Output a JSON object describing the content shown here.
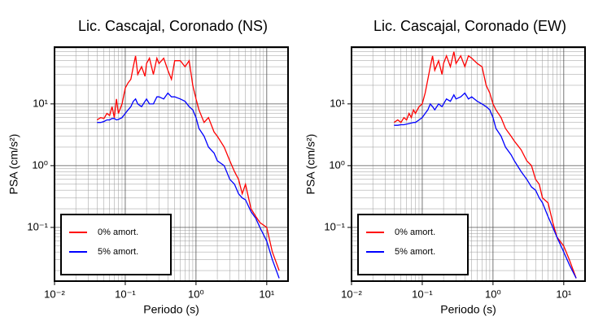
{
  "chart_data": [
    {
      "type": "line",
      "title": "Lic. Cascajal, Coronado (NS)",
      "x_label": "Periodo (s)",
      "y_label": "PSA (cm/s²)",
      "x_log": true,
      "y_log": true,
      "grid": true,
      "minor_grid": true,
      "legend": "lower left",
      "xlim": [
        0.01,
        20
      ],
      "ylim": [
        0.0135,
        83
      ],
      "xticks": [
        {
          "value": 0.01,
          "label": "10⁻²"
        },
        {
          "value": 0.1,
          "label": "10⁻¹"
        },
        {
          "value": 1,
          "label": "10⁰"
        },
        {
          "value": 10,
          "label": "10¹"
        }
      ],
      "yticks": [
        {
          "value": 0.1,
          "label": "10⁻¹"
        },
        {
          "value": 1,
          "label": "10⁰"
        },
        {
          "value": 10,
          "label": "10¹"
        }
      ],
      "x": [
        0.04,
        0.045,
        0.05,
        0.055,
        0.06,
        0.065,
        0.07,
        0.075,
        0.08,
        0.09,
        0.1,
        0.11,
        0.12,
        0.13,
        0.14,
        0.15,
        0.17,
        0.19,
        0.2,
        0.22,
        0.25,
        0.28,
        0.3,
        0.35,
        0.4,
        0.45,
        0.5,
        0.6,
        0.7,
        0.8,
        0.9,
        1.0,
        1.1,
        1.3,
        1.5,
        1.8,
        2.0,
        2.5,
        3.0,
        3.5,
        4.0,
        4.5,
        5.0,
        6.0,
        7.0,
        8.0,
        10,
        12,
        15
      ],
      "series": [
        {
          "name": "0% amort.",
          "color": "#ff0000",
          "values": [
            5.5,
            6,
            5.8,
            7,
            6.5,
            9,
            6,
            12,
            7,
            10,
            18,
            22,
            25,
            40,
            60,
            30,
            40,
            28,
            45,
            55,
            30,
            55,
            45,
            55,
            35,
            25,
            50,
            50,
            40,
            50,
            20,
            12,
            8,
            5,
            6,
            3.5,
            3,
            2,
            1.2,
            0.8,
            0.6,
            0.35,
            0.5,
            0.2,
            0.15,
            0.12,
            0.1,
            0.04,
            0.02
          ]
        },
        {
          "name": "5% amort.",
          "color": "#0000ff",
          "values": [
            5,
            5,
            5.2,
            5.5,
            5.5,
            5.8,
            5.8,
            5.5,
            5.6,
            6,
            7,
            8,
            9,
            11,
            12,
            10,
            9,
            11,
            12,
            10,
            10,
            13,
            13,
            12,
            15,
            13,
            13,
            12,
            11,
            9,
            8,
            6,
            4,
            3,
            2,
            1.6,
            1.2,
            1.0,
            0.6,
            0.5,
            0.35,
            0.3,
            0.28,
            0.18,
            0.14,
            0.1,
            0.06,
            0.03,
            0.015
          ]
        }
      ]
    },
    {
      "type": "line",
      "title": "Lic. Cascajal, Coronado (EW)",
      "x_label": "Periodo (s)",
      "y_label": "PSA (cm/s²)",
      "x_log": true,
      "y_log": true,
      "grid": true,
      "minor_grid": true,
      "legend": "lower left",
      "xlim": [
        0.01,
        20
      ],
      "ylim": [
        0.0135,
        83
      ],
      "xticks": [
        {
          "value": 0.01,
          "label": "10⁻²"
        },
        {
          "value": 0.1,
          "label": "10⁻¹"
        },
        {
          "value": 1,
          "label": "10⁰"
        },
        {
          "value": 10,
          "label": "10¹"
        }
      ],
      "yticks": [
        {
          "value": 0.1,
          "label": "10⁻¹"
        },
        {
          "value": 1,
          "label": "10⁰"
        },
        {
          "value": 10,
          "label": "10¹"
        }
      ],
      "x": [
        0.04,
        0.045,
        0.05,
        0.055,
        0.06,
        0.065,
        0.07,
        0.075,
        0.08,
        0.09,
        0.1,
        0.11,
        0.12,
        0.13,
        0.14,
        0.15,
        0.17,
        0.19,
        0.2,
        0.22,
        0.25,
        0.28,
        0.3,
        0.35,
        0.4,
        0.45,
        0.5,
        0.6,
        0.7,
        0.8,
        0.9,
        1.0,
        1.1,
        1.3,
        1.5,
        1.8,
        2.0,
        2.5,
        3.0,
        3.5,
        4.0,
        4.5,
        5.0,
        6.0,
        7.0,
        8.0,
        10,
        12,
        15
      ],
      "series": [
        {
          "name": "0% amort.",
          "color": "#ff0000",
          "values": [
            5,
            5.5,
            5,
            6,
            5.5,
            7,
            6,
            8,
            7,
            9,
            10,
            15,
            25,
            40,
            60,
            35,
            50,
            30,
            45,
            60,
            40,
            70,
            45,
            60,
            40,
            60,
            55,
            45,
            40,
            20,
            15,
            10,
            8,
            6,
            4,
            3,
            2.5,
            1.8,
            1.2,
            1.0,
            0.6,
            0.5,
            0.3,
            0.25,
            0.12,
            0.07,
            0.05,
            0.03,
            0.015
          ]
        },
        {
          "name": "5% amort.",
          "color": "#0000ff",
          "values": [
            4.5,
            4.5,
            4.6,
            4.6,
            4.7,
            4.8,
            4.9,
            5,
            5,
            5.5,
            6,
            7,
            8,
            10,
            9,
            8,
            10,
            9,
            10,
            12,
            11,
            14,
            12,
            13,
            15,
            12,
            13,
            11,
            10,
            9,
            8,
            6,
            4,
            3,
            2,
            1.5,
            1.2,
            0.8,
            0.6,
            0.45,
            0.4,
            0.3,
            0.25,
            0.15,
            0.1,
            0.07,
            0.04,
            0.025,
            0.015
          ]
        }
      ]
    }
  ]
}
